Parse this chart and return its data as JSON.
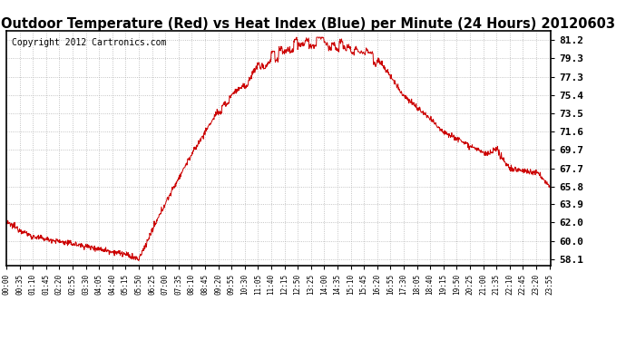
{
  "title": "Outdoor Temperature (Red) vs Heat Index (Blue) per Minute (24 Hours) 20120603",
  "copyright": "Copyright 2012 Cartronics.com",
  "yticks": [
    58.1,
    60.0,
    62.0,
    63.9,
    65.8,
    67.7,
    69.7,
    71.6,
    73.5,
    75.4,
    77.3,
    79.3,
    81.2
  ],
  "ylim": [
    57.5,
    82.2
  ],
  "line_color": "#cc0000",
  "background_color": "#ffffff",
  "grid_color": "#aaaaaa",
  "title_fontsize": 10.5,
  "copyright_fontsize": 7,
  "xtick_fontsize": 5.5,
  "ytick_fontsize": 8,
  "xtick_start": 0,
  "xtick_step": 35,
  "total_minutes": 1440
}
